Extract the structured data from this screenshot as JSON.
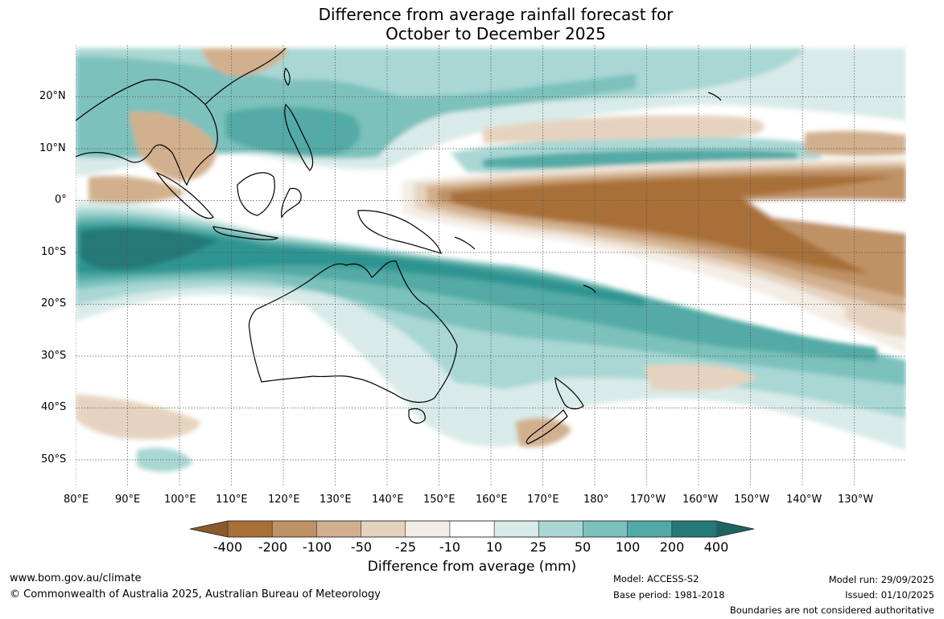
{
  "title": {
    "line1": "Difference from average rainfall forecast for",
    "line2": "October to December 2025"
  },
  "map": {
    "lat_labels": [
      "20°N",
      "10°N",
      "0°",
      "10°S",
      "20°S",
      "30°S",
      "40°S",
      "50°S"
    ],
    "lon_labels": [
      "80°E",
      "90°E",
      "100°E",
      "110°E",
      "120°E",
      "130°E",
      "140°E",
      "150°E",
      "160°E",
      "170°E",
      "180°",
      "170°W",
      "160°W",
      "150°W",
      "140°W",
      "130°W"
    ]
  },
  "colorbar": {
    "ticks": [
      "-400",
      "-200",
      "-100",
      "-50",
      "-25",
      "-10",
      "10",
      "25",
      "50",
      "100",
      "200",
      "400"
    ],
    "colors": [
      "#a86f38",
      "#bf9266",
      "#d2b08e",
      "#e6d3bf",
      "#f4ede6",
      "#ffffff",
      "#d8ebe9",
      "#a9d7d4",
      "#7bc1bc",
      "#52aaa6",
      "#2f9491",
      "#257876"
    ],
    "title": "Difference from average (mm)"
  },
  "footer": {
    "website": "www.bom.gov.au/climate",
    "copyright": "© Commonwealth of Australia 2025, Australian Bureau of Meteorology",
    "model": "Model: ACCESS-S2",
    "base_period": "Base period: 1981-2018",
    "model_run": "Model run: 29/09/2025",
    "issued": "Issued: 01/10/2025",
    "boundaries": "Boundaries are not considered authoritative"
  }
}
